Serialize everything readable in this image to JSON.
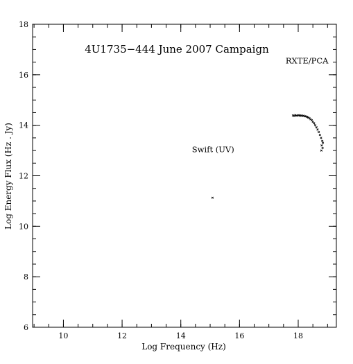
{
  "chart_data": {
    "type": "scatter",
    "title": "4U1735−444 June 2007 Campaign",
    "xlabel": "Log Frequency (Hz)",
    "ylabel": "Log Energy Flux (Hz . Jy)",
    "xlim": [
      8.95,
      19.3
    ],
    "ylim": [
      6,
      18
    ],
    "xticks": [
      10,
      12,
      14,
      16,
      18
    ],
    "yticks": [
      6,
      8,
      10,
      12,
      14,
      16,
      18
    ],
    "grid": false,
    "annotations": [
      {
        "text": "RXTE/PCA",
        "x": 18.3,
        "y": 16.45
      },
      {
        "text": "Swift (UV)",
        "x": 15.1,
        "y": 12.93
      }
    ],
    "series": [
      {
        "points": [
          [
            15.08,
            11.13
          ],
          [
            17.82,
            14.39
          ],
          [
            17.86,
            14.37
          ],
          [
            17.9,
            14.4
          ],
          [
            17.94,
            14.38
          ],
          [
            17.98,
            14.39
          ],
          [
            18.02,
            14.4
          ],
          [
            18.06,
            14.38
          ],
          [
            18.1,
            14.39
          ],
          [
            18.14,
            14.37
          ],
          [
            18.18,
            14.38
          ],
          [
            18.22,
            14.36
          ],
          [
            18.26,
            14.35
          ],
          [
            18.3,
            14.33
          ],
          [
            18.34,
            14.31
          ],
          [
            18.38,
            14.28
          ],
          [
            18.42,
            14.24
          ],
          [
            18.46,
            14.2
          ],
          [
            18.5,
            14.14
          ],
          [
            18.54,
            14.08
          ],
          [
            18.58,
            14.0
          ],
          [
            18.62,
            13.92
          ],
          [
            18.66,
            13.83
          ],
          [
            18.7,
            13.73
          ],
          [
            18.74,
            13.62
          ],
          [
            18.78,
            13.5
          ],
          [
            18.82,
            13.38
          ],
          [
            18.84,
            13.3
          ],
          [
            18.8,
            13.2
          ],
          [
            18.83,
            13.1
          ],
          [
            18.79,
            13.0
          ]
        ]
      }
    ]
  }
}
